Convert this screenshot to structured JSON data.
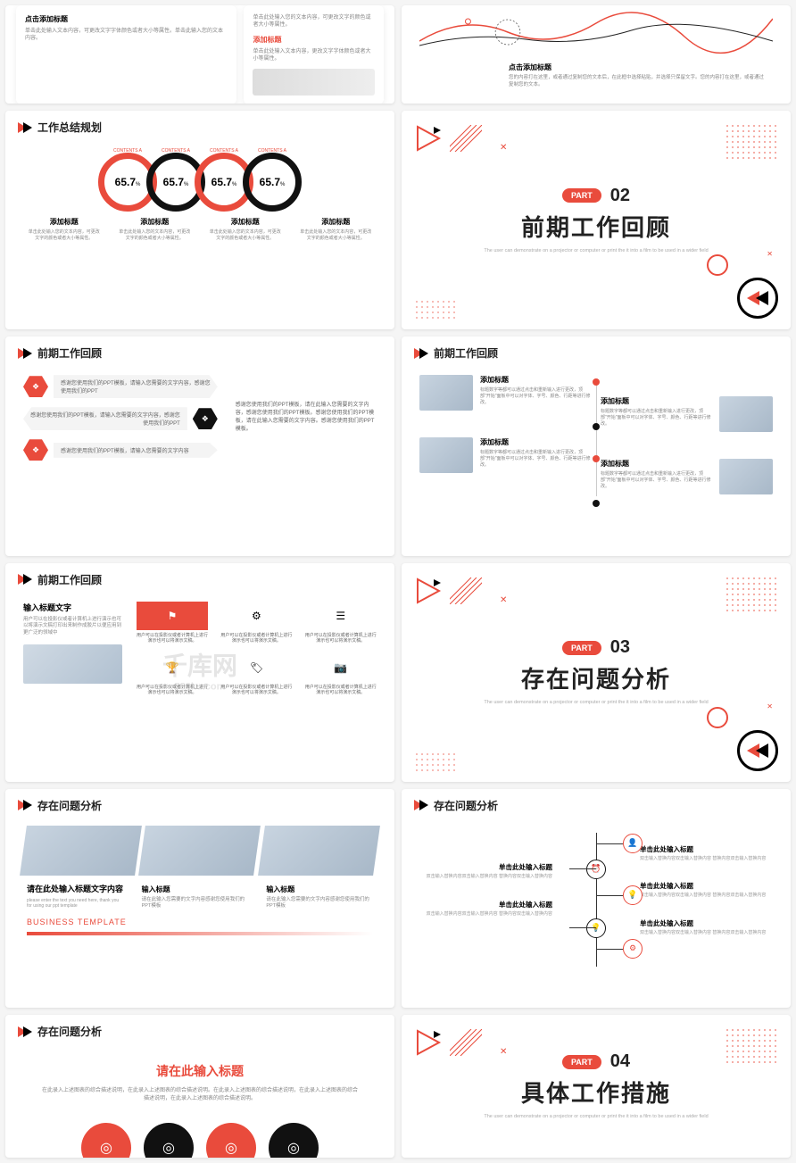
{
  "colors": {
    "accent": "#e94b3c",
    "black": "#111111",
    "gray": "#888888",
    "bg": "#ffffff"
  },
  "watermark": {
    "main": "千库网",
    "sub": "588ku.com"
  },
  "part_sub": "The user can demonstrate on a projector or computer or print the it into a film to be used in a wider field",
  "slide1": {
    "card1": {
      "title": "点击添加标题",
      "body": "单击此处输入文本内容，可更改文字字体颜色或者大小等属性。单击此输入您的文本内容。"
    },
    "card2": {
      "title": "添加标题",
      "body": "单击此处输入文本内容，更改文字字体颜色或者大小等属性。"
    },
    "card2_top_body": "单击此处输入您的文本内容，可更改文字的颜色或者大小等属性。"
  },
  "slide2": {
    "title": "点击添加标题",
    "body": "您的内容打在这里，或者通过复制您的文本后，在此框中选择粘贴，并选择只保留文字。您的内容打在这里，或者通过复制您的文本。",
    "line_color_1": "#e94b3c",
    "line_color_2": "#222222"
  },
  "slide3": {
    "header": "工作总结规划",
    "contents_label": "CONTENTS A",
    "rings": [
      {
        "value": "65.7",
        "pct": "%",
        "color": "#e94b3c",
        "title": "添加标题"
      },
      {
        "value": "65.7",
        "pct": "%",
        "color": "#111111",
        "title": "添加标题"
      },
      {
        "value": "65.7",
        "pct": "%",
        "color": "#e94b3c",
        "title": "添加标题"
      },
      {
        "value": "65.7",
        "pct": "%",
        "color": "#111111",
        "title": "添加标题"
      }
    ],
    "desc": "单击此处输入您的文本内容，可更改文字的颜色或者大小等属性。"
  },
  "slide4": {
    "part": "PART",
    "num": "02",
    "title": "前期工作回顾"
  },
  "slide5": {
    "header": "前期工作回顾",
    "rows": [
      {
        "color": "#e94b3c",
        "text": "感谢您使用我们的PPT模板，请输入您需要的文字内容，感谢您使用我们的PPT"
      },
      {
        "color": "#111111",
        "text": "感谢您使用我们的PPT模板，请输入您需要的文字内容，感谢您使用我们的PPT"
      },
      {
        "color": "#e94b3c",
        "text": "感谢您使用我们的PPT模板，请输入您需要的文字内容"
      }
    ],
    "right": "感谢您使用我们的PPT模板，请在此输入您需要的文字内容，感谢您使用我们的PPT模板。感谢您使用我们的PPT模板，请在此输入您需要的文字内容。感谢您使用我们的PPT模板。"
  },
  "slide6": {
    "header": "前期工作回顾",
    "item_title": "添加标题",
    "item_body": "标题数字等都可以通过点击和重新输入进行更改，顶部\"开始\"面板中可以对字体、字号、颜色、行距等进行修改。",
    "dots": [
      "#e94b3c",
      "#111111",
      "#e94b3c",
      "#111111"
    ]
  },
  "slide7": {
    "header": "前期工作回顾",
    "left_title": "输入标题文字",
    "left_body": "用户可以在投影仪或者计算机上进行演示也可以将演示文稿打印出来制作成胶片以便应用到更广泛的领域中",
    "cell_body": "用户可以在投影仪或者计算机上进行演示也可以将演示文稿。",
    "icons": [
      "⚑",
      "⚙",
      "☰",
      "🏆",
      "🏷",
      "📷"
    ]
  },
  "slide8": {
    "part": "PART",
    "num": "03",
    "title": "存在问题分析"
  },
  "slide9": {
    "header": "存在问题分析",
    "left_title": "请在此处输入标题文字内容",
    "left_sub": "please enter the text you need here, thank you for using our ppt template",
    "col_title": "输入标题",
    "col_body": "请在此输入您需要的文字内容感谢您使用我们的PPT模板",
    "template": "BUSINESS TEMPLATE"
  },
  "slide10": {
    "header": "存在问题分析",
    "item_title": "单击此处输入标题",
    "item_body": "双击输入替换内容双击输入替换内容 替换内容双击输入替换内容",
    "center_icons": [
      "⏰",
      "💡"
    ],
    "end_icons": [
      "👤",
      "💡",
      "⚙",
      "⚙"
    ]
  },
  "slide11": {
    "header": "存在问题分析",
    "title": "请在此输入标题",
    "body": "在此录入上述图表的综合描述说明，在此录入上述图表的综合描述说明。在此录入上述图表的综合描述说明，在此录入上述图表的综合描述说明，在此录入上述图表的综合描述说明。",
    "circles": [
      "#e94b3c",
      "#111111",
      "#e94b3c",
      "#111111"
    ],
    "circle_icon": "◎"
  },
  "slide12": {
    "part": "PART",
    "num": "04",
    "title": "具体工作措施"
  }
}
